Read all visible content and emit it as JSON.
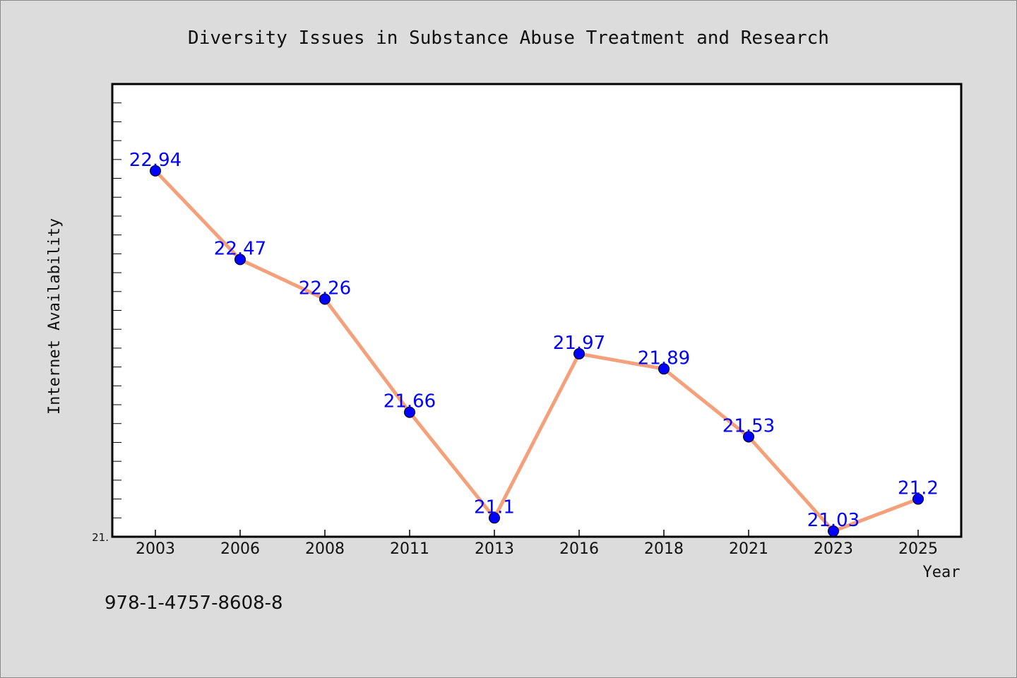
{
  "chart_data": {
    "type": "line",
    "title": "Diversity Issues in Substance Abuse Treatment and Research",
    "xlabel": "Year",
    "ylabel": "Internet Availability",
    "categories": [
      "2003",
      "2006",
      "2008",
      "2011",
      "2013",
      "2016",
      "2018",
      "2021",
      "2023",
      "2025"
    ],
    "series": [
      {
        "values": [
          22.94,
          22.47,
          22.26,
          21.66,
          21.1,
          21.97,
          21.89,
          21.53,
          21.03,
          21.2
        ],
        "data_labels": [
          "22.94",
          "22.47",
          "22.26",
          "21.66",
          "21.1",
          "21.97",
          "21.89",
          "21.53",
          "21.03",
          "21.2"
        ]
      }
    ],
    "ylim": [
      21.0,
      23.4
    ],
    "y_tick_labels": [
      "21."
    ],
    "grid": false,
    "line_color": "#f4a07a",
    "marker_color": "#0000ff",
    "label_color": "#0000ff"
  },
  "footer": {
    "isbn": "978-1-4757-8608-8"
  }
}
